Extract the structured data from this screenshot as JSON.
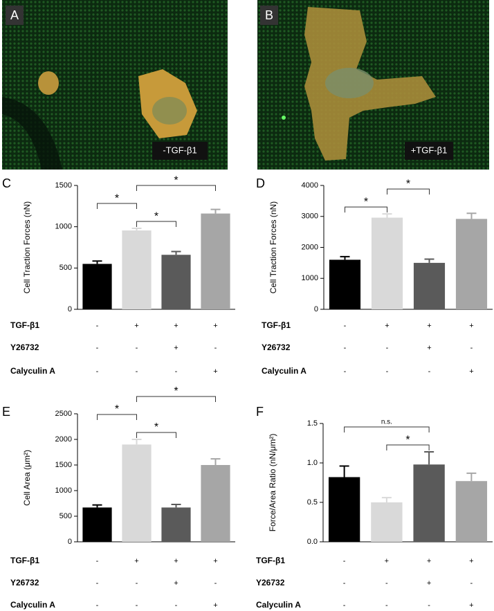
{
  "images": [
    {
      "label": "A",
      "caption": "-TGF-β1"
    },
    {
      "label": "B",
      "caption": "+TGF-β1"
    }
  ],
  "chart_data": [
    {
      "type": "bar",
      "panel": "C",
      "ylabel": "Cell Traction Forces (nN)",
      "categories": [
        null,
        null,
        null,
        null
      ],
      "values": [
        550,
        955,
        660,
        1160
      ],
      "errors": [
        35,
        25,
        40,
        50
      ],
      "colors": [
        "#000000",
        "#d9d9d9",
        "#5a5a5a",
        "#a6a6a6"
      ],
      "ylim": [
        0,
        1500
      ],
      "yticks": [
        0,
        500,
        1000,
        1500
      ],
      "conditions": [
        {
          "name": "TGF-β1",
          "values": [
            "-",
            "+",
            "+",
            "+"
          ]
        },
        {
          "name": "Y26732",
          "values": [
            "-",
            "-",
            "+",
            "-"
          ]
        },
        {
          "name": "Calyculin A",
          "values": [
            "-",
            "-",
            "-",
            "+"
          ]
        }
      ],
      "annotations": [
        {
          "from": 1,
          "to": 2,
          "label": "*"
        },
        {
          "from": 0,
          "to": 1,
          "label": "*"
        },
        {
          "from": 1,
          "to": 3,
          "label": "*"
        }
      ]
    },
    {
      "type": "bar",
      "panel": "D",
      "ylabel": "Cell Traction Forces (nN)",
      "categories": [
        null,
        null,
        null,
        null
      ],
      "values": [
        1600,
        2960,
        1500,
        2920
      ],
      "errors": [
        100,
        120,
        120,
        180
      ],
      "colors": [
        "#000000",
        "#d9d9d9",
        "#5a5a5a",
        "#a6a6a6"
      ],
      "ylim": [
        0,
        4000
      ],
      "yticks": [
        0,
        1000,
        2000,
        3000,
        4000
      ],
      "conditions": [
        {
          "name": "TGF-β1",
          "values": [
            "-",
            "+",
            "+",
            "+"
          ]
        },
        {
          "name": "Y26732",
          "values": [
            "-",
            "-",
            "+",
            "-"
          ]
        },
        {
          "name": "Calyculin A",
          "values": [
            "-",
            "-",
            "-",
            "+"
          ]
        }
      ],
      "annotations": [
        {
          "from": 0,
          "to": 1,
          "label": "*"
        },
        {
          "from": 1,
          "to": 2,
          "label": "*"
        }
      ]
    },
    {
      "type": "bar",
      "panel": "E",
      "ylabel": "Cell Area (μm²)",
      "categories": [
        null,
        null,
        null,
        null
      ],
      "values": [
        670,
        1900,
        670,
        1500
      ],
      "errors": [
        50,
        100,
        60,
        120
      ],
      "colors": [
        "#000000",
        "#d9d9d9",
        "#5a5a5a",
        "#a6a6a6"
      ],
      "ylim": [
        0,
        2500
      ],
      "yticks": [
        0,
        500,
        1000,
        1500,
        2000,
        2500
      ],
      "conditions": [
        {
          "name": "TGF-β1",
          "values": [
            "-",
            "+",
            "+",
            "+"
          ]
        },
        {
          "name": "Y26732",
          "values": [
            "-",
            "-",
            "+",
            "-"
          ]
        },
        {
          "name": "Calyculin A",
          "values": [
            "-",
            "-",
            "-",
            "+"
          ]
        }
      ],
      "annotations": [
        {
          "from": 1,
          "to": 2,
          "label": "*"
        },
        {
          "from": 0,
          "to": 1,
          "label": "*"
        },
        {
          "from": 1,
          "to": 3,
          "label": "*"
        }
      ]
    },
    {
      "type": "bar",
      "panel": "F",
      "ylabel": "Force/Area Ratio (nN/μm²)",
      "categories": [
        null,
        null,
        null,
        null
      ],
      "values": [
        0.82,
        0.5,
        0.98,
        0.77
      ],
      "errors": [
        0.14,
        0.06,
        0.16,
        0.1
      ],
      "colors": [
        "#000000",
        "#d9d9d9",
        "#5a5a5a",
        "#a6a6a6"
      ],
      "ylim": [
        0,
        1.5
      ],
      "yticks": [
        {
          "value": 0,
          "label": "0.0"
        },
        0.5,
        {
          "value": 1,
          "label": "1.0"
        },
        1.5
      ],
      "conditions": [
        {
          "name": "TGF-β1",
          "values": [
            "-",
            "+",
            "+",
            "+"
          ]
        },
        {
          "name": "Y26732",
          "values": [
            "-",
            "-",
            "+",
            "-"
          ]
        },
        {
          "name": "Calyculin A",
          "values": [
            "-",
            "-",
            "-",
            "+"
          ]
        }
      ],
      "annotations": [
        {
          "from": 1,
          "to": 2,
          "label": "*"
        },
        {
          "from": 0,
          "to": 2,
          "label": "n.s."
        }
      ]
    }
  ]
}
